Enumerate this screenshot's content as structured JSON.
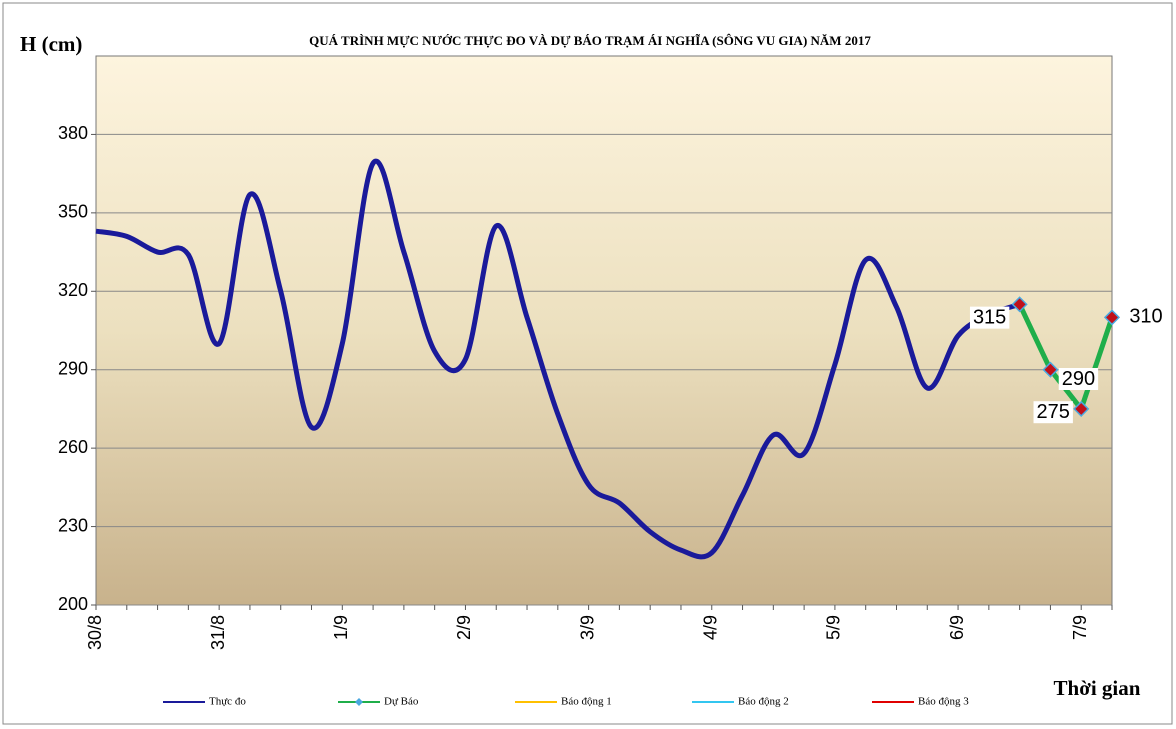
{
  "chart_data": {
    "type": "line",
    "title": "QUÁ TRÌNH MỰC NƯỚC THỰC ĐO VÀ DỰ BÁO TRẠM ÁI NGHĨA (SÔNG VU GIA) NĂM 2017",
    "y_label": "H (cm)",
    "x_label": "Thời gian",
    "categories": [
      "30/8",
      null,
      null,
      null,
      "31/8",
      null,
      null,
      null,
      "1/9",
      null,
      null,
      null,
      "2/9",
      null,
      null,
      null,
      "3/9",
      null,
      null,
      null,
      "4/9",
      null,
      null,
      null,
      "5/9",
      null,
      null,
      null,
      "6/9",
      null,
      null,
      null,
      "7/9",
      null
    ],
    "series": [
      {
        "name": "Thực đo",
        "color": "#1a1a9a",
        "values": [
          343,
          341,
          335,
          334,
          300,
          357,
          320,
          268,
          300,
          369,
          335,
          297,
          294,
          345,
          310,
          273,
          246,
          239,
          228,
          221,
          220,
          242,
          265,
          258,
          292,
          332,
          314,
          283,
          303,
          311,
          315,
          null,
          null,
          null
        ]
      },
      {
        "name": "Dự Báo",
        "color": "#1fae4a",
        "marker_color": "#c0101a",
        "values": [
          null,
          null,
          null,
          null,
          null,
          null,
          null,
          null,
          null,
          null,
          null,
          null,
          null,
          null,
          null,
          null,
          null,
          null,
          null,
          null,
          null,
          null,
          null,
          null,
          null,
          null,
          null,
          null,
          null,
          null,
          315,
          290,
          275,
          310
        ],
        "data_labels": true
      },
      {
        "name": "Báo động 1",
        "color": "#ffc000",
        "values": [
          null,
          null,
          null,
          null,
          null,
          null,
          null,
          null,
          null,
          null,
          null,
          null,
          null,
          null,
          null,
          null,
          null,
          null,
          null,
          null,
          null,
          null,
          null,
          null,
          null,
          null,
          null,
          null,
          null,
          null,
          null,
          null,
          null,
          null
        ]
      },
      {
        "name": "Báo động 2",
        "color": "#33c6f0",
        "values": [
          null,
          null,
          null,
          null,
          null,
          null,
          null,
          null,
          null,
          null,
          null,
          null,
          null,
          null,
          null,
          null,
          null,
          null,
          null,
          null,
          null,
          null,
          null,
          null,
          null,
          null,
          null,
          null,
          null,
          null,
          null,
          null,
          null,
          null
        ]
      },
      {
        "name": "Báo động 3",
        "color": "#e00000",
        "values": [
          null,
          null,
          null,
          null,
          null,
          null,
          null,
          null,
          null,
          null,
          null,
          null,
          null,
          null,
          null,
          null,
          null,
          null,
          null,
          null,
          null,
          null,
          null,
          null,
          null,
          null,
          null,
          null,
          null,
          null,
          null,
          null,
          null,
          null
        ]
      }
    ],
    "ylim": [
      200,
      410
    ],
    "yticks": [
      200,
      230,
      260,
      290,
      320,
      350,
      380
    ],
    "grid": true,
    "legend": "bottom"
  }
}
